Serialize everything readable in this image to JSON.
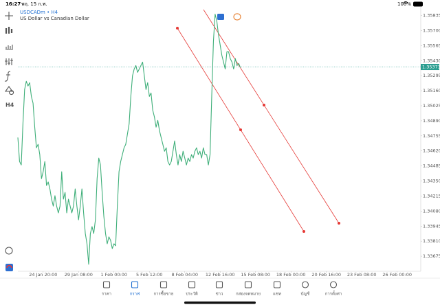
{
  "status_bar": {
    "time": "16:27",
    "date": "พฤ. 15 ก.พ.",
    "battery": "100%"
  },
  "symbol": {
    "name": "USDCADm • H4",
    "description": "US Dollar vs Canadian Dollar"
  },
  "toolbar": {
    "timeframe": "H4"
  },
  "chart_data": {
    "type": "line",
    "color": "#3dae78",
    "values": [
      1.3474,
      1.34525,
      1.34494,
      1.34863,
      1.35171,
      1.35245,
      1.35202,
      1.35232,
      1.35109,
      1.35048,
      1.34833,
      1.34648,
      1.34679,
      1.34587,
      1.34371,
      1.34433,
      1.34525,
      1.3431,
      1.34341,
      1.34279,
      1.34187,
      1.34125,
      1.34218,
      1.34125,
      1.34064,
      1.34125,
      1.34433,
      1.34187,
      1.34248,
      1.34064,
      1.34187,
      1.34125,
      1.34064,
      1.34125,
      1.34279,
      1.34125,
      1.34002,
      1.34125,
      1.34279,
      1.34064,
      1.33879,
      1.33787,
      1.33603,
      1.33879,
      1.33941,
      1.33879,
      1.34002,
      1.34371,
      1.34556,
      1.34494,
      1.34248,
      1.34033,
      1.33879,
      1.33787,
      1.33849,
      1.33818,
      1.33744,
      1.33787,
      1.33769,
      1.34125,
      1.34433,
      1.34525,
      1.34587,
      1.34648,
      1.34679,
      1.34771,
      1.34863,
      1.35109,
      1.35294,
      1.35355,
      1.35386,
      1.35325,
      1.35355,
      1.35386,
      1.35417,
      1.35294,
      1.35171,
      1.35232,
      1.35109,
      1.3514,
      1.34986,
      1.34925,
      1.34833,
      1.34894,
      1.34802,
      1.3474,
      1.34679,
      1.34617,
      1.34648,
      1.34525,
      1.34494,
      1.34525,
      1.34617,
      1.3471,
      1.34587,
      1.34494,
      1.34587,
      1.34525,
      1.34617,
      1.34556,
      1.34494,
      1.34556,
      1.34525,
      1.34587,
      1.34556,
      1.34617,
      1.34648,
      1.34587,
      1.34617,
      1.34556,
      1.34648,
      1.34587,
      1.34587,
      1.34494,
      1.34587,
      1.35109,
      1.35601,
      1.35847,
      1.35786,
      1.35663,
      1.35571,
      1.35478,
      1.35417,
      1.35355,
      1.35509,
      1.35509,
      1.35448,
      1.35417,
      1.35355,
      1.35448,
      1.35386,
      1.35405,
      1.35368
    ],
    "current_price": 1.35373,
    "xlim": [
      0,
      239
    ],
    "ylim": [
      1.3354,
      1.359
    ],
    "yticks": [
      1.35835,
      {
        "value": 1.357,
        "label": "1.35700"
      },
      1.35565,
      {
        "value": 1.3543,
        "label": "1.35430"
      },
      1.35295,
      {
        "value": 1.3516,
        "label": "1.35160"
      },
      1.35025,
      {
        "value": 1.3489,
        "label": "1.34890"
      },
      1.34755,
      {
        "value": 1.3462,
        "label": "1.34620"
      },
      1.34485,
      {
        "value": 1.3435,
        "label": "1.34350"
      },
      1.34215,
      {
        "value": 1.3408,
        "label": "1.34080"
      },
      1.33945,
      {
        "value": 1.3381,
        "label": "1.33810"
      },
      1.33675
    ],
    "xticks": [
      {
        "value": 15,
        "label": "24 Jan 20:00"
      },
      {
        "value": 36,
        "label": "29 Jan 08:00"
      },
      {
        "value": 57,
        "label": "1 Feb 00:00"
      },
      {
        "value": 78,
        "label": "5 Feb 12:00"
      },
      {
        "value": 99,
        "label": "8 Feb 04:00"
      },
      {
        "value": 120,
        "label": "12 Feb 16:00"
      },
      {
        "value": 141,
        "label": "15 Feb 08:00"
      },
      {
        "value": 162,
        "label": "18 Feb 00:00"
      },
      {
        "value": 183,
        "label": "20 Feb 16:00"
      },
      {
        "value": 204,
        "label": "23 Feb 08:00"
      },
      {
        "value": 225,
        "label": "26 Feb 00:00"
      }
    ]
  },
  "tabs": [
    "ราคา",
    "กราฟ",
    "การซื้อขาย",
    "ประวัติ",
    "ข่าว",
    "กล่องจดหมาย",
    "แชท",
    "บัญชี",
    "การตั้งค่า"
  ]
}
